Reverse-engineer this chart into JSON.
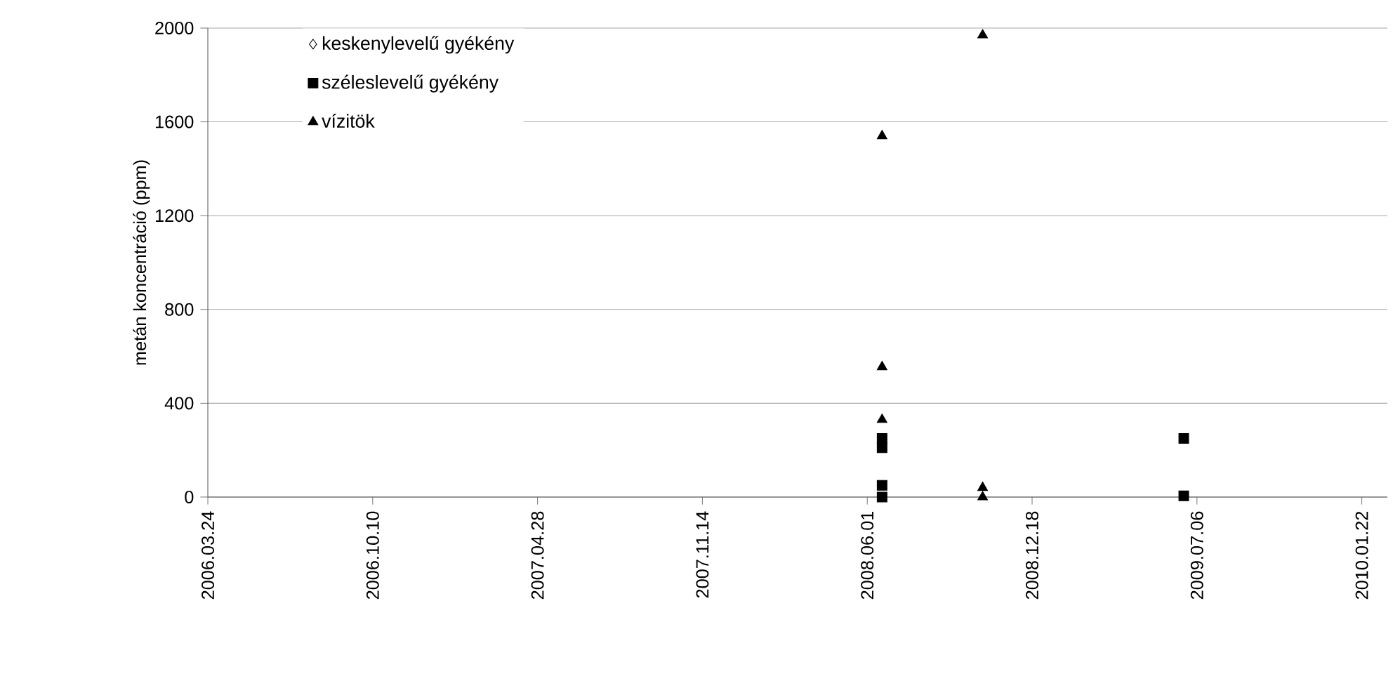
{
  "chart_data": {
    "type": "scatter",
    "ylabel": "metán koncentráció (ppm)",
    "series": [
      {
        "name": "keskenylevelű gyékény",
        "color": "#000000",
        "marker": "diamond"
      },
      {
        "name": "széleslevelű gyékény",
        "color": "#000000",
        "marker": "square",
        "x": [
          "2008-06-19",
          "2008-06-19",
          "2008-06-19",
          "2008-06-19",
          "2009-06-20",
          "2009-06-20"
        ],
        "values": [
          250,
          210,
          50,
          0,
          250,
          5
        ]
      },
      {
        "name": "vízitök",
        "color": "#000000",
        "marker": "triangle",
        "x": [
          "2008-06-19",
          "2008-06-19",
          "2008-06-19",
          "2008-10-19",
          "2008-10-19",
          "2008-10-19"
        ],
        "values": [
          1540,
          555,
          330,
          1970,
          40,
          0
        ]
      }
    ],
    "xlim": [
      "2006-03-24",
      "2010-02-22"
    ],
    "xticks": [
      {
        "value": "2006-03-24",
        "label": "2006.03.24"
      },
      {
        "value": "2006-10-10",
        "label": "2006.10.10"
      },
      {
        "value": "2007-04-28",
        "label": "2007.04.28"
      },
      {
        "value": "2007-11-14",
        "label": "2007.11.14"
      },
      {
        "value": "2008-06-01",
        "label": "2008.06.01"
      },
      {
        "value": "2008-12-18",
        "label": "2008.12.18"
      },
      {
        "value": "2009-07-06",
        "label": "2009.07.06"
      },
      {
        "value": "2010-01-22",
        "label": "2010.01.22"
      }
    ],
    "ylim": [
      0,
      2000
    ],
    "yticks": [
      0,
      400,
      800,
      1200,
      1600,
      2000
    ],
    "grid": "y",
    "legend": "top left"
  }
}
